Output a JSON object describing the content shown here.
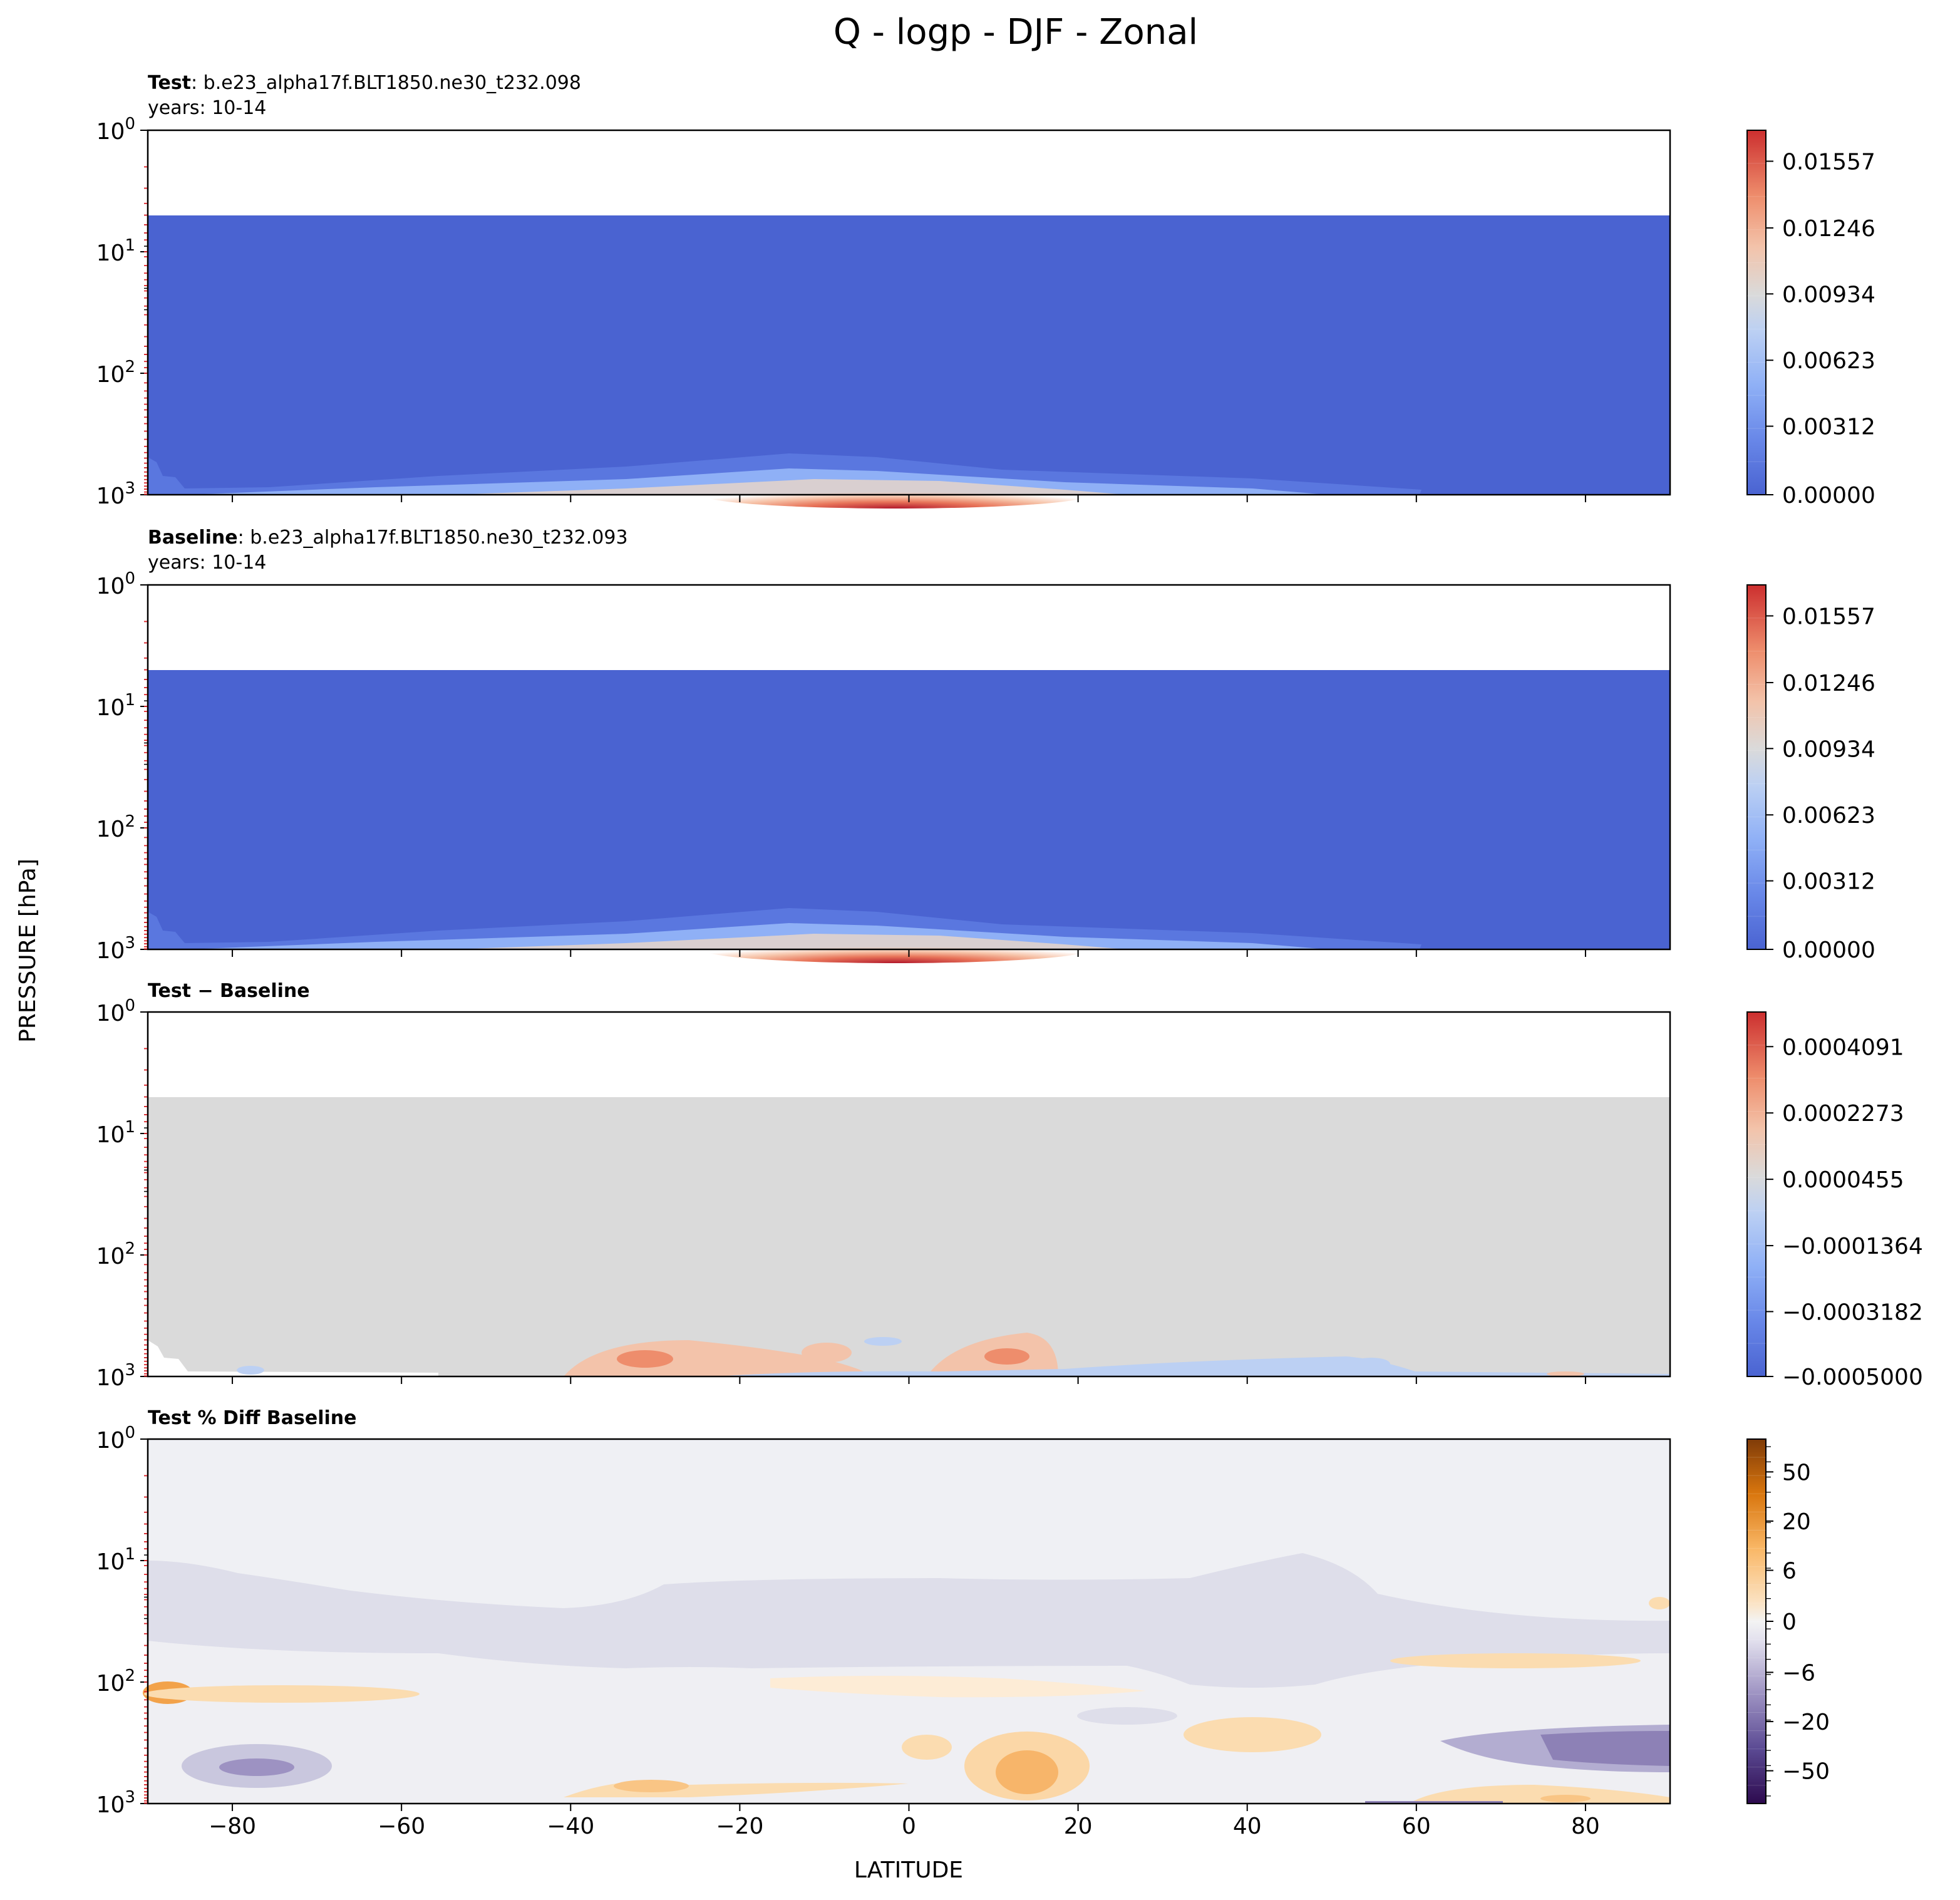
{
  "figure": {
    "title": "Q - logp - DJF - Zonal",
    "xlabel": "LATITUDE",
    "ylabel": "PRESSURE [hPa]"
  },
  "chart_data": [
    {
      "type": "heatmap",
      "panel": "test",
      "title_bold": "Test",
      "title_rest": ": b.e23_alpha17f.BLT1850.ne30_t232.098",
      "subtitle": "years: 10-14",
      "xlim": [
        -90,
        90
      ],
      "ylim_log_hPa": [
        1000,
        1
      ],
      "y_ticks": [
        "10^0",
        "10^1",
        "10^2",
        "10^3"
      ],
      "x_ticks": [
        -80,
        -60,
        -40,
        -20,
        0,
        20,
        40,
        60,
        80
      ],
      "colorbar": {
        "cmap": "coolwarm",
        "ticks": [
          "0.01557",
          "0.01246",
          "0.00934",
          "0.00623",
          "0.00312",
          "0.00000"
        ],
        "range": [
          0.0,
          0.0175
        ]
      },
      "model_top_hPa": 4.8,
      "max_value_region": {
        "lat_center": -5,
        "pressure_hPa": 1000,
        "value": 0.017
      }
    },
    {
      "type": "heatmap",
      "panel": "baseline",
      "title_bold": "Baseline",
      "title_rest": ": b.e23_alpha17f.BLT1850.ne30_t232.093",
      "subtitle": "years: 10-14",
      "xlim": [
        -90,
        90
      ],
      "ylim_log_hPa": [
        1000,
        1
      ],
      "y_ticks": [
        "10^0",
        "10^1",
        "10^2",
        "10^3"
      ],
      "x_ticks": [
        -80,
        -60,
        -40,
        -20,
        0,
        20,
        40,
        60,
        80
      ],
      "colorbar": {
        "cmap": "coolwarm",
        "ticks": [
          "0.01557",
          "0.01246",
          "0.00934",
          "0.00623",
          "0.00312",
          "0.00000"
        ],
        "range": [
          0.0,
          0.0175
        ]
      },
      "model_top_hPa": 4.8
    },
    {
      "type": "heatmap",
      "panel": "difference",
      "title_bold": "Test − Baseline",
      "xlim": [
        -90,
        90
      ],
      "ylim_log_hPa": [
        1000,
        1
      ],
      "y_ticks": [
        "10^0",
        "10^1",
        "10^2",
        "10^3"
      ],
      "colorbar": {
        "cmap": "coolwarm",
        "ticks": [
          "0.0004091",
          "0.0002273",
          "0.0000455",
          "−0.0001364",
          "−0.0003182",
          "−0.0005000"
        ],
        "range": [
          -0.0005,
          0.0005
        ]
      },
      "model_top_hPa": 4.8
    },
    {
      "type": "heatmap",
      "panel": "percent_diff",
      "title_bold": "Test % Diff Baseline",
      "xlim": [
        -90,
        90
      ],
      "ylim_log_hPa": [
        1000,
        1
      ],
      "y_ticks": [
        "10^0",
        "10^1",
        "10^2",
        "10^3"
      ],
      "x_ticks": [
        -80,
        -60,
        -40,
        -20,
        0,
        20,
        40,
        60,
        80
      ],
      "colorbar": {
        "cmap": "PuOr_r",
        "ticks": [
          "50",
          "20",
          "6",
          "0",
          "−6",
          "−20",
          "−50"
        ]
      }
    }
  ]
}
